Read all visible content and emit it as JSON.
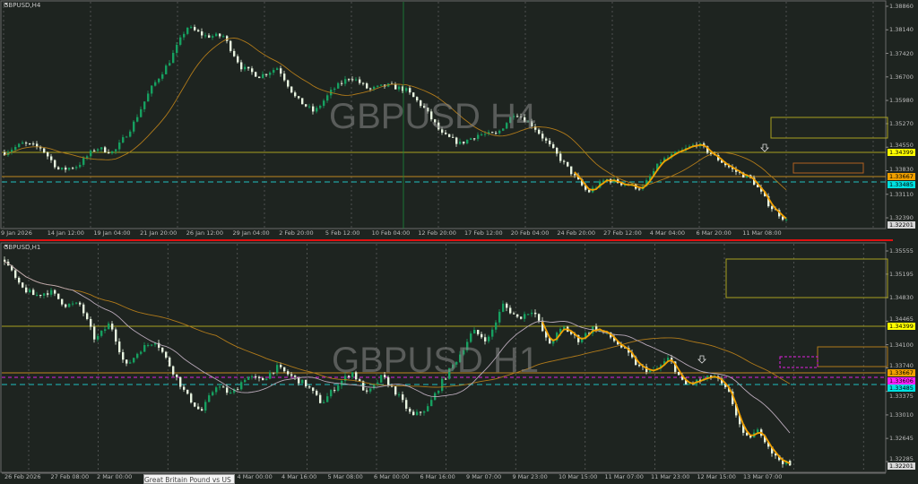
{
  "colors": {
    "background": "#1e2420",
    "bull": "#16a060",
    "bear": "#e8f4e0",
    "ma": "#b07a1a",
    "zigzag": "#f0a000",
    "level": "#a8a020",
    "orange_level": "#c08820",
    "cyan": "#20c0c0",
    "magenta": "#e020e0",
    "separator": "#e01010"
  },
  "top": {
    "symbol": "GBPUSD,H4",
    "watermark": "GBPUSD H4",
    "price_ticks": [
      "1.38860",
      "1.38140",
      "1.37420",
      "1.36700",
      "1.35980",
      "1.35270",
      "1.34550",
      "1.33830",
      "1.33110",
      "1.32390"
    ],
    "tags": [
      {
        "text": "1.34399",
        "color": "#ffff00"
      },
      {
        "text": "1.33667",
        "color": "#f0a000"
      },
      {
        "text": "1.33485",
        "color": "#00e0e0"
      },
      {
        "text": "1.32201",
        "color": "#d8d8d8"
      }
    ],
    "time_labels": [
      "9 Jan 2026",
      "14 Jan 12:00",
      "19 Jan 04:00",
      "21 Jan 20:00",
      "26 Jan 12:00",
      "29 Jan 04:00",
      "2 Feb 20:00",
      "5 Feb 12:00",
      "10 Feb 04:00",
      "12 Feb 20:00",
      "17 Feb 12:00",
      "20 Feb 04:00",
      "24 Feb 20:00",
      "27 Feb 12:00",
      "4 Mar 04:00",
      "6 Mar 20:00",
      "11 Mar 08:00"
    ],
    "price_path": [
      1.3439,
      1.3466,
      1.3453,
      1.3384,
      1.3398,
      1.3453,
      1.3439,
      1.352,
      1.3631,
      1.3713,
      1.3823,
      1.3795,
      1.3795,
      1.3699,
      1.3672,
      1.3699,
      1.3603,
      1.3562,
      1.3631,
      1.3672,
      1.3631,
      1.3644,
      1.3631,
      1.3576,
      1.3494,
      1.3466,
      1.3494,
      1.3494,
      1.3562,
      1.3521,
      1.3453,
      1.3384,
      1.3316,
      1.3357,
      1.3343,
      1.3329,
      1.3412,
      1.3439,
      1.3466,
      1.3425,
      1.3384,
      1.3357,
      1.3275,
      1.3225
    ]
  },
  "bottom": {
    "symbol": "GBPUSD,H1",
    "watermark": "GBPUSD H1",
    "price_ticks": [
      "1.35555",
      "1.35195",
      "1.34830",
      "1.34465",
      "1.34100",
      "1.33740",
      "1.33375",
      "1.33010",
      "1.32645",
      "1.32285"
    ],
    "tags": [
      {
        "text": "1.34399",
        "color": "#ffff00"
      },
      {
        "text": "1.33667",
        "color": "#f0a000"
      },
      {
        "text": "1.33606",
        "color": "#ff20ff"
      },
      {
        "text": "1.33485",
        "color": "#00e0e0"
      },
      {
        "text": "1.32201",
        "color": "#d8d8d8"
      }
    ],
    "time_labels": [
      "26 Feb 2026",
      "27 Feb 08:00",
      "2 Mar 00:00",
      "4 Mar 00:00",
      "4 Mar 16:00",
      "5 Mar 08:00",
      "6 Mar 00:00",
      "6 Mar 16:00",
      "9 Mar 07:00",
      "9 Mar 23:00",
      "10 Mar 15:00",
      "11 Mar 07:00",
      "11 Mar 23:00",
      "12 Mar 15:00",
      "13 Mar 07:00"
    ],
    "price_path": [
      1.3542,
      1.35,
      1.3486,
      1.3493,
      1.3472,
      1.3472,
      1.3417,
      1.3444,
      1.3375,
      1.3403,
      1.3417,
      1.3375,
      1.3333,
      1.3305,
      1.3347,
      1.3333,
      1.3361,
      1.3354,
      1.3375,
      1.3361,
      1.3347,
      1.3319,
      1.3347,
      1.3368,
      1.3333,
      1.3361,
      1.3333,
      1.3298,
      1.3312,
      1.3354,
      1.3389,
      1.3431,
      1.3417,
      1.3472,
      1.3451,
      1.3465,
      1.341,
      1.3437,
      1.3417,
      1.3437,
      1.3424,
      1.3403,
      1.3375,
      1.3368,
      1.3389,
      1.3347,
      1.3354,
      1.3361,
      1.3333,
      1.3263,
      1.3277,
      1.3236,
      1.3222
    ]
  },
  "tooltip": "Great Britain Pound vs US Dollar"
}
